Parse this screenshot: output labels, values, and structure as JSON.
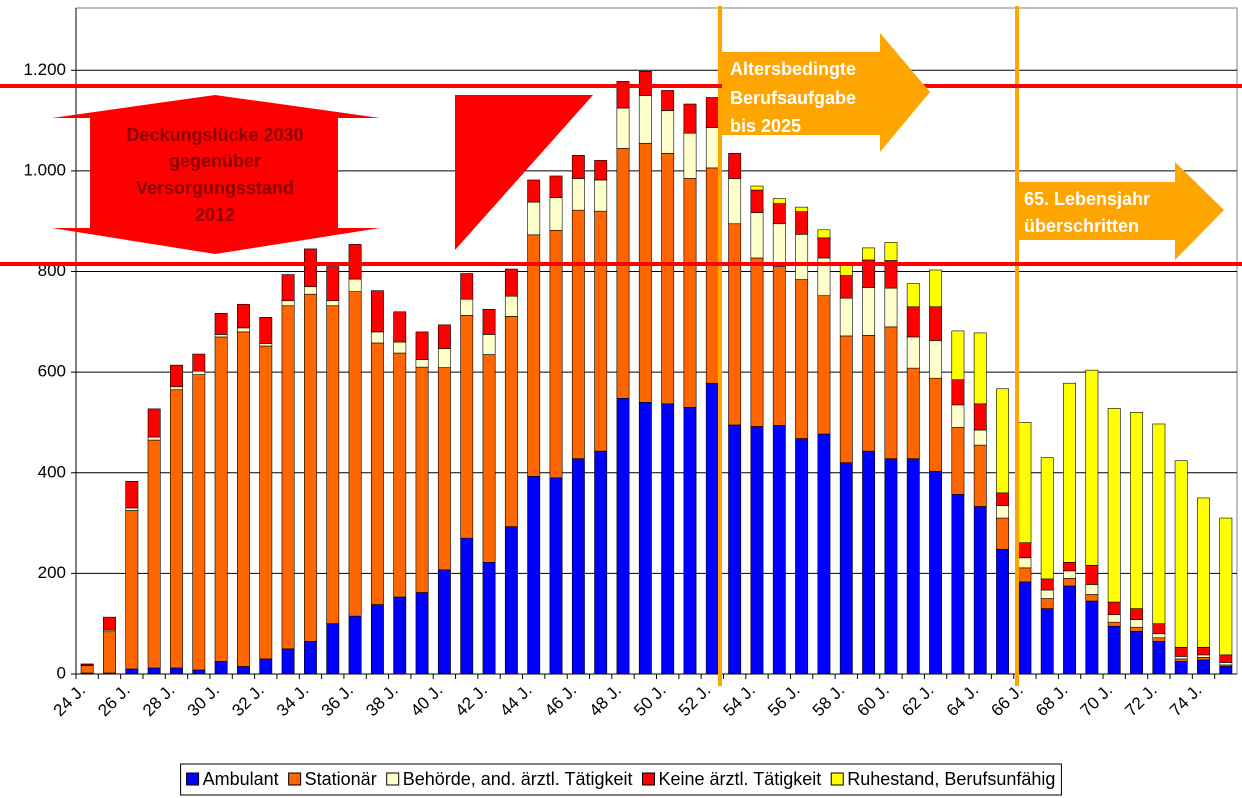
{
  "chart_data": {
    "type": "stacked_bar",
    "categories": [
      "24 J.",
      null,
      "26 J.",
      null,
      "28 J.",
      null,
      "30 J.",
      null,
      "32 J.",
      null,
      "34 J.",
      null,
      "36 J.",
      null,
      "38 J.",
      null,
      "40 J.",
      null,
      "42 J.",
      null,
      "44 J.",
      null,
      "46 J.",
      null,
      "48 J.",
      null,
      "50 J.",
      null,
      "52 J.",
      null,
      "54 J.",
      null,
      "56 J.",
      null,
      "58 J.",
      null,
      "60 J.",
      null,
      "62 J.",
      null,
      "64 J.",
      null,
      "66 J.",
      null,
      "68 J.",
      null,
      "70 J.",
      null,
      "72 J.",
      null,
      "74 J.",
      null
    ],
    "series": [
      {
        "name": "Ambulant",
        "color": "#0000ff",
        "values": [
          2,
          2,
          10,
          12,
          12,
          8,
          25,
          15,
          30,
          50,
          65,
          100,
          115,
          138,
          153,
          162,
          207,
          270,
          222,
          293,
          393,
          390,
          428,
          443,
          548,
          540,
          537,
          530,
          578,
          495,
          492,
          494,
          468,
          477,
          420,
          443,
          428,
          428,
          403,
          357,
          333,
          248,
          183,
          130,
          175,
          145,
          95,
          85,
          65,
          25,
          28,
          15
        ]
      },
      {
        "name": "Stationär",
        "color": "#ff6600",
        "values": [
          15,
          82,
          315,
          453,
          553,
          587,
          645,
          665,
          622,
          682,
          690,
          632,
          645,
          520,
          485,
          448,
          402,
          443,
          413,
          418,
          480,
          492,
          494,
          477,
          497,
          515,
          498,
          455,
          428,
          400,
          335,
          316,
          316,
          275,
          252,
          230,
          262,
          180,
          185,
          133,
          122,
          62,
          28,
          20,
          15,
          13,
          8,
          8,
          7,
          5,
          5,
          3
        ]
      },
      {
        "name": "Behörde, and. ärztl. Tätigkeit",
        "color": "#ffffcc",
        "values": [
          1,
          3,
          5,
          6,
          6,
          7,
          5,
          8,
          5,
          10,
          15,
          10,
          25,
          22,
          22,
          15,
          38,
          32,
          40,
          40,
          65,
          65,
          63,
          62,
          80,
          95,
          85,
          90,
          80,
          90,
          90,
          85,
          90,
          75,
          75,
          95,
          77,
          62,
          75,
          45,
          30,
          25,
          20,
          17,
          15,
          20,
          15,
          15,
          8,
          5,
          5,
          5
        ]
      },
      {
        "name": "Keine ärztl. Tätigkeit",
        "color": "#ff0000",
        "values": [
          2,
          26,
          53,
          56,
          43,
          34,
          42,
          47,
          52,
          52,
          75,
          68,
          69,
          82,
          60,
          55,
          47,
          51,
          50,
          54,
          44,
          43,
          46,
          39,
          53,
          48,
          40,
          58,
          60,
          50,
          45,
          40,
          45,
          40,
          45,
          55,
          55,
          60,
          67,
          50,
          52,
          25,
          30,
          22,
          17,
          38,
          25,
          22,
          20,
          18,
          15,
          15
        ]
      },
      {
        "name": "Ruhestand, Berufsunfähig",
        "color": "#ffff00",
        "values": [
          0,
          0,
          0,
          0,
          0,
          0,
          0,
          0,
          0,
          0,
          0,
          0,
          0,
          0,
          0,
          0,
          0,
          0,
          0,
          0,
          0,
          0,
          0,
          0,
          0,
          0,
          0,
          0,
          0,
          0,
          8,
          10,
          9,
          16,
          23,
          24,
          36,
          46,
          73,
          97,
          141,
          207,
          239,
          241,
          356,
          388,
          385,
          390,
          397,
          371,
          297,
          272
        ]
      }
    ],
    "ylim": [
      0,
      1300
    ],
    "yticks": [
      0,
      200,
      400,
      600,
      800,
      {
        "value": 1000,
        "label": "1.000"
      },
      {
        "value": 1200,
        "label": "1.200"
      }
    ],
    "grid": true,
    "legend": "bottom",
    "annotations": {
      "gap": [
        "Deckungslücke 2030",
        "gegenüber",
        "Versorgungsstand",
        "2012"
      ],
      "retire": [
        "Altersbedingte",
        "Berufsaufgabe",
        "bis 2025"
      ],
      "over65": [
        "65. Lebensjahr",
        "überschritten"
      ]
    }
  }
}
